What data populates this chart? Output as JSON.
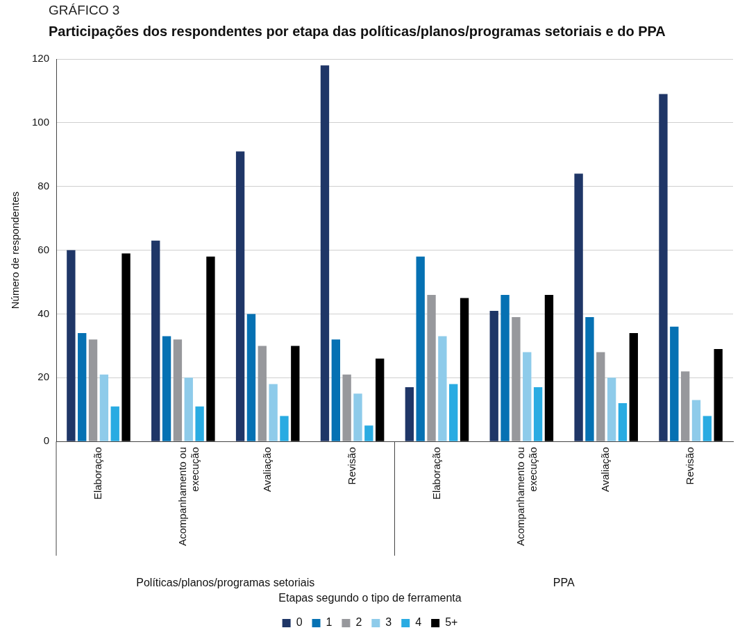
{
  "chart_data": {
    "type": "bar",
    "subtitle": "GRÁFICO 3",
    "title": "Participações dos respondentes por etapa das políticas/planos/programas setoriais e do PPA",
    "ylabel": "Número de respondentes",
    "legend_title": "Etapas segundo o tipo de ferramenta",
    "categories": [
      "Elaboração",
      "Acompanhamento ou execução",
      "Avaliação",
      "Revisão",
      "Elaboração",
      "Acompanhamento ou execução",
      "Avaliação",
      "Revisão"
    ],
    "series": [
      {
        "name": "0",
        "color": "#1f3667",
        "values": [
          60,
          63,
          91,
          118,
          17,
          41,
          84,
          109
        ]
      },
      {
        "name": "1",
        "color": "#0571b3",
        "values": [
          34,
          33,
          40,
          32,
          58,
          46,
          39,
          36
        ]
      },
      {
        "name": "2",
        "color": "#97989c",
        "values": [
          32,
          32,
          30,
          21,
          46,
          39,
          28,
          22
        ]
      },
      {
        "name": "3",
        "color": "#8ecbea",
        "values": [
          21,
          20,
          18,
          15,
          33,
          28,
          20,
          13
        ]
      },
      {
        "name": "4",
        "color": "#29abe2",
        "values": [
          11,
          11,
          8,
          5,
          18,
          17,
          12,
          8
        ]
      },
      {
        "name": "5+",
        "color": "#000000",
        "values": [
          59,
          58,
          30,
          26,
          45,
          46,
          34,
          29
        ]
      }
    ],
    "annotations": [
      "Políticas/planos/programas setoriais",
      "PPA"
    ],
    "ylim": [
      0,
      120
    ],
    "yticks": [
      0,
      20,
      40,
      60,
      80,
      100,
      120
    ],
    "grid": "y",
    "legend": "bottom"
  }
}
